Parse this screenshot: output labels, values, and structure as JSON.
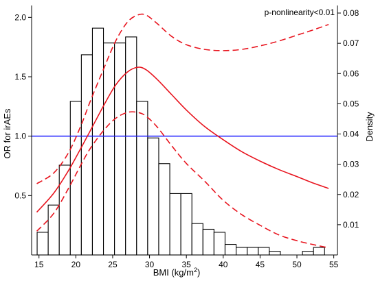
{
  "chart_data": {
    "type": "line",
    "annotation": "p-nonlinearity<0.01",
    "xlabel": "BMI (kg/m",
    "xlabel_sup": "2",
    "xlabel_close": ")",
    "ylabel_left": "OR for irAEs",
    "ylabel_right": "Density",
    "xlim": [
      14,
      55.5
    ],
    "ylim_left": [
      0,
      2.1
    ],
    "ylim_right": [
      0,
      0.0825
    ],
    "xticks": [
      15,
      20,
      25,
      30,
      35,
      40,
      45,
      50,
      55
    ],
    "xtick_labels": [
      "15",
      "20",
      "25",
      "30",
      "35",
      "40",
      "45",
      "50",
      "55"
    ],
    "yticks_left": [
      0.5,
      1.0,
      1.5,
      2.0
    ],
    "ytick_labels_left": [
      "0.5",
      "1.0",
      "1.5",
      "2.0"
    ],
    "yticks_right": [
      0.01,
      0.02,
      0.03,
      0.04,
      0.05,
      0.06,
      0.07,
      0.08
    ],
    "ytick_labels_right": [
      "0.01",
      "0.02",
      "0.03",
      "0.04",
      "0.05",
      "0.06",
      "0.07",
      "0.08"
    ],
    "reference_line": {
      "y": 1.0,
      "color": "#1a1aff"
    },
    "histogram": {
      "bin_width": 1.5,
      "bins": [
        {
          "x0": 14.75,
          "density": 0.0075
        },
        {
          "x0": 16.25,
          "density": 0.0165
        },
        {
          "x0": 17.75,
          "density": 0.0297
        },
        {
          "x0": 19.25,
          "density": 0.0508
        },
        {
          "x0": 20.75,
          "density": 0.0662
        },
        {
          "x0": 22.25,
          "density": 0.075
        },
        {
          "x0": 23.75,
          "density": 0.0701
        },
        {
          "x0": 25.25,
          "density": 0.0701
        },
        {
          "x0": 26.75,
          "density": 0.0721
        },
        {
          "x0": 28.25,
          "density": 0.0508
        },
        {
          "x0": 29.75,
          "density": 0.0387
        },
        {
          "x0": 31.25,
          "density": 0.0302
        },
        {
          "x0": 32.75,
          "density": 0.0203
        },
        {
          "x0": 34.25,
          "density": 0.0203
        },
        {
          "x0": 35.75,
          "density": 0.0104
        },
        {
          "x0": 37.25,
          "density": 0.0085
        },
        {
          "x0": 38.75,
          "density": 0.0075
        },
        {
          "x0": 40.25,
          "density": 0.0035
        },
        {
          "x0": 41.75,
          "density": 0.0025
        },
        {
          "x0": 43.25,
          "density": 0.0025
        },
        {
          "x0": 44.75,
          "density": 0.0025
        },
        {
          "x0": 46.25,
          "density": 0.0012
        },
        {
          "x0": 50.75,
          "density": 0.0012
        },
        {
          "x0": 52.25,
          "density": 0.0025
        }
      ]
    },
    "series": [
      {
        "role": "estimate",
        "color": "#e8141e",
        "dash": "solid",
        "x": [
          14.7,
          17,
          19,
          20.7,
          22,
          23.8,
          25.4,
          27,
          28.4,
          29.5,
          31,
          33,
          35,
          37.5,
          40,
          42.5,
          45,
          47.5,
          50,
          52,
          54.3
        ],
        "y": [
          0.36,
          0.52,
          0.71,
          0.9,
          1.05,
          1.26,
          1.43,
          1.54,
          1.58,
          1.56,
          1.48,
          1.35,
          1.22,
          1.08,
          0.97,
          0.87,
          0.79,
          0.72,
          0.66,
          0.61,
          0.56
        ]
      },
      {
        "role": "upper 95% CI",
        "color": "#e8141e",
        "dash": "dashed",
        "x": [
          14.7,
          17,
          19,
          20.7,
          22,
          23.8,
          25.4,
          27,
          28.4,
          29.5,
          31,
          33,
          35,
          37.5,
          40,
          42.5,
          45,
          47.5,
          50,
          52,
          54.3
        ],
        "y": [
          0.6,
          0.69,
          0.86,
          1.09,
          1.3,
          1.57,
          1.8,
          1.96,
          2.02,
          2.02,
          1.95,
          1.84,
          1.77,
          1.73,
          1.72,
          1.73,
          1.76,
          1.8,
          1.85,
          1.89,
          1.94
        ]
      },
      {
        "role": "lower 95% CI",
        "color": "#e8141e",
        "dash": "dashed",
        "x": [
          14.7,
          17,
          19,
          20.7,
          22,
          23.8,
          25.4,
          27,
          28.4,
          29.5,
          31,
          33,
          35,
          37.5,
          40,
          42.5,
          45,
          47.5,
          50,
          52,
          54.3
        ],
        "y": [
          0.2,
          0.35,
          0.56,
          0.76,
          0.9,
          1.05,
          1.15,
          1.2,
          1.2,
          1.17,
          1.08,
          0.92,
          0.77,
          0.62,
          0.46,
          0.34,
          0.25,
          0.17,
          0.12,
          0.09,
          0.06
        ]
      }
    ]
  }
}
